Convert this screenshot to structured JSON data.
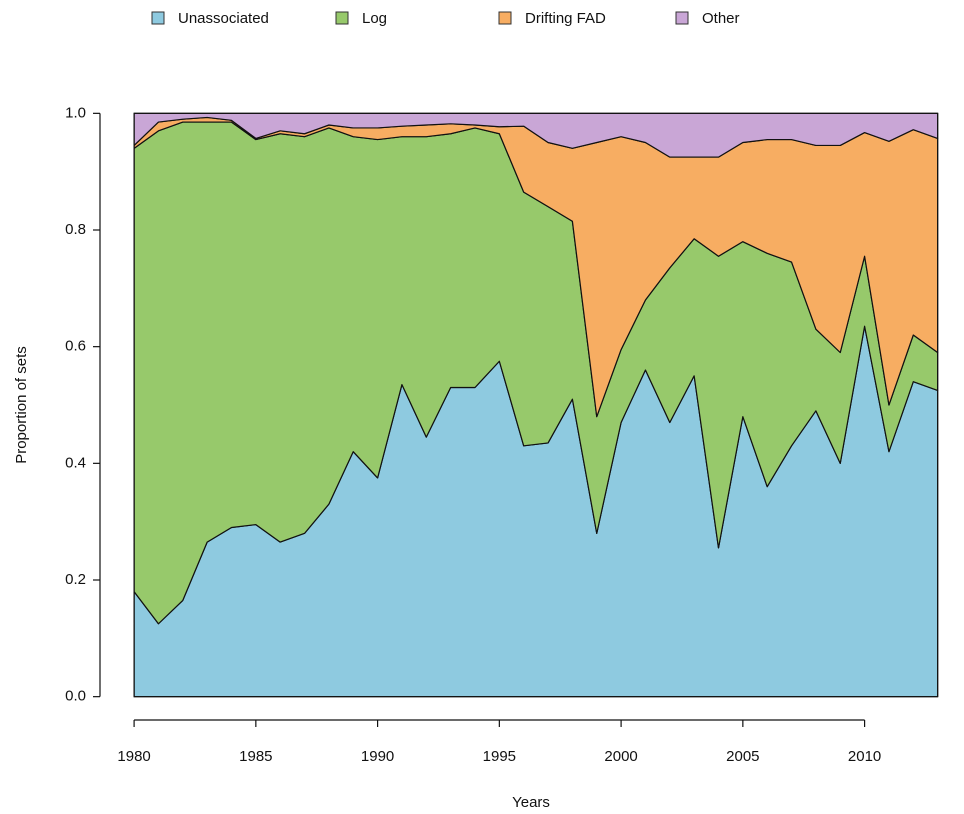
{
  "chart_data": {
    "type": "stacked_area",
    "x_label": "Years",
    "y_label": "Proportion of sets",
    "x": [
      1980,
      1981,
      1982,
      1983,
      1984,
      1985,
      1986,
      1987,
      1988,
      1989,
      1990,
      1991,
      1992,
      1993,
      1994,
      1995,
      1996,
      1997,
      1998,
      1999,
      2000,
      2001,
      2002,
      2003,
      2004,
      2005,
      2006,
      2007,
      2008,
      2009,
      2010,
      2011,
      2012,
      2013
    ],
    "series": [
      {
        "name": "Unassociated",
        "color": "#8ecae0",
        "values": [
          0.18,
          0.125,
          0.165,
          0.265,
          0.29,
          0.295,
          0.265,
          0.28,
          0.33,
          0.42,
          0.375,
          0.535,
          0.445,
          0.53,
          0.53,
          0.575,
          0.43,
          0.435,
          0.51,
          0.28,
          0.47,
          0.56,
          0.47,
          0.55,
          0.255,
          0.48,
          0.36,
          0.43,
          0.49,
          0.4,
          0.635,
          0.42,
          0.54,
          0.525
        ]
      },
      {
        "name": "Log",
        "color": "#97c96b",
        "values": [
          0.76,
          0.845,
          0.82,
          0.72,
          0.695,
          0.66,
          0.7,
          0.68,
          0.645,
          0.54,
          0.58,
          0.425,
          0.515,
          0.435,
          0.445,
          0.39,
          0.435,
          0.405,
          0.305,
          0.2,
          0.125,
          0.12,
          0.265,
          0.235,
          0.5,
          0.3,
          0.4,
          0.315,
          0.14,
          0.19,
          0.12,
          0.08,
          0.08,
          0.065
        ]
      },
      {
        "name": "Drifting FAD",
        "color": "#f7ad62",
        "values": [
          0.005,
          0.015,
          0.005,
          0.008,
          0.003,
          0.002,
          0.005,
          0.005,
          0.005,
          0.015,
          0.02,
          0.018,
          0.02,
          0.017,
          0.005,
          0.012,
          0.113,
          0.11,
          0.125,
          0.47,
          0.365,
          0.27,
          0.19,
          0.14,
          0.17,
          0.17,
          0.195,
          0.21,
          0.315,
          0.355,
          0.212,
          0.452,
          0.352,
          0.367
        ]
      },
      {
        "name": "Other",
        "color": "#c9a6d6",
        "values": [
          0.055,
          0.015,
          0.01,
          0.007,
          0.012,
          0.043,
          0.03,
          0.035,
          0.02,
          0.025,
          0.025,
          0.022,
          0.02,
          0.018,
          0.02,
          0.023,
          0.022,
          0.05,
          0.06,
          0.05,
          0.04,
          0.05,
          0.075,
          0.075,
          0.075,
          0.05,
          0.045,
          0.045,
          0.055,
          0.055,
          0.033,
          0.048,
          0.028,
          0.043
        ]
      }
    ],
    "xlim": [
      1978.6,
      2014.0
    ],
    "ylim": [
      -0.04,
      1.04
    ],
    "xticks": [
      1980,
      1985,
      1990,
      1995,
      2000,
      2005,
      2010
    ],
    "yticks": [
      {
        "value": 0,
        "label": "0.0"
      },
      {
        "value": 0.2,
        "label": "0.2"
      },
      {
        "value": 0.4,
        "label": "0.4"
      },
      {
        "value": 0.6,
        "label": "0.6"
      },
      {
        "value": 0.8,
        "label": "0.8"
      },
      {
        "value": 1,
        "label": "1.0"
      }
    ],
    "legend": "top"
  }
}
